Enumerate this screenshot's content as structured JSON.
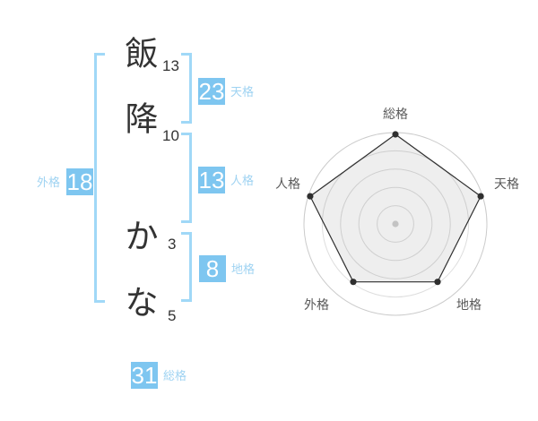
{
  "name_diagram": {
    "characters": [
      {
        "char": "飯",
        "strokes": "13"
      },
      {
        "char": "降",
        "strokes": "10"
      },
      {
        "char": "か",
        "strokes": "3"
      },
      {
        "char": "な",
        "strokes": "5"
      }
    ],
    "badges": {
      "tenkaku": {
        "value": "23",
        "label": "天格"
      },
      "jinkaku": {
        "value": "13",
        "label": "人格"
      },
      "chikaku": {
        "value": "8",
        "label": "地格"
      },
      "gaikaku": {
        "value": "18",
        "label": "外格"
      },
      "soukaku": {
        "value": "31",
        "label": "総格"
      }
    }
  },
  "chart_data": {
    "type": "radar",
    "categories": [
      "総格",
      "天格",
      "地格",
      "外格",
      "人格"
    ],
    "values": [
      5,
      5,
      4,
      4,
      5
    ],
    "max": 5,
    "rings": 5,
    "grid": "concentric-circles",
    "legend_position": "none",
    "title": ""
  },
  "colors": {
    "badge_bg": "#7EC6F0",
    "badge_text": "#FFFFFF",
    "light_blue_label": "#9FD3F2",
    "bracket_blue": "#A0D8F7",
    "text_dark": "#333333",
    "radar_label": "#595959",
    "ring": "#DEDEDE",
    "outer_ring": "#CBCBCB",
    "polygon_stroke": "#2F2F2F",
    "polygon_fill": "rgba(0,0,0,0.065)",
    "center_dot": "#C3C3C3"
  }
}
